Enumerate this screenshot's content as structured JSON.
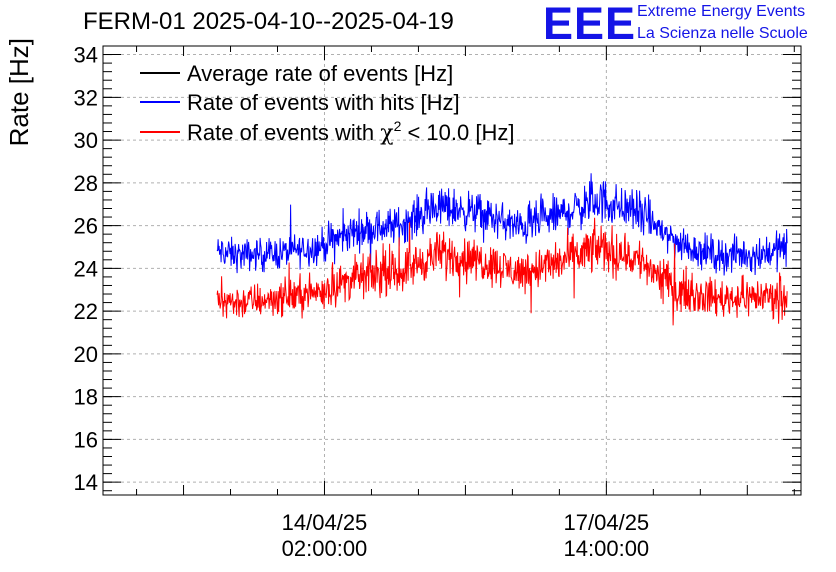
{
  "header": {
    "title": "FERM-01 2025-04-10--2025-04-19",
    "logo_text": "EEE",
    "logo_line1": "Extreme Energy Events",
    "logo_line2": "La Scienza nelle Scuole"
  },
  "colors": {
    "black_series": "#000000",
    "blue_series": "#0000ff",
    "red_series": "#ff0000",
    "logo": "#1414e6"
  },
  "chart_data": {
    "type": "line",
    "title": "FERM-01 2025-04-10--2025-04-19",
    "ylabel": "Rate [Hz]",
    "xlabel": "",
    "ylim": [
      13.4,
      34.4
    ],
    "y_ticks": [
      "14",
      "16",
      "18",
      "20",
      "22",
      "24",
      "26",
      "28",
      "30",
      "32",
      "34"
    ],
    "x_ticks": [
      {
        "date": "14/04/25",
        "time": "02:00:00"
      },
      {
        "date": "17/04/25",
        "time": "14:00:00"
      }
    ],
    "x_range_days": [
      "2025-04-11 08:00",
      "2025-04-20 00:00"
    ],
    "grid": true,
    "legend_position": "top-left",
    "legend": [
      {
        "name": "Average rate of events [Hz]",
        "color": "#000000"
      },
      {
        "name": "Rate of events with hits [Hz]",
        "color": "#0000ff"
      },
      {
        "name_prefix": "Rate of events with ",
        "name_symbol": "χ",
        "name_sup": "2",
        "name_suffix": " < 10.0 [Hz]",
        "color": "#ff0000"
      }
    ],
    "series": [
      {
        "name": "Rate of events with hits [Hz]",
        "color": "#0000ff",
        "x": [
          "2025-04-12 18:00",
          "2025-04-13 00:00",
          "2025-04-13 12:00",
          "2025-04-14 00:00",
          "2025-04-14 12:00",
          "2025-04-15 00:00",
          "2025-04-15 12:00",
          "2025-04-16 00:00",
          "2025-04-16 12:00",
          "2025-04-17 00:00",
          "2025-04-17 12:00",
          "2025-04-18 00:00",
          "2025-04-18 12:00",
          "2025-04-19 00:00",
          "2025-04-19 12:00",
          "2025-04-19 20:00"
        ],
        "mean": [
          24.8,
          24.6,
          24.7,
          25.0,
          25.8,
          26.0,
          26.9,
          26.6,
          25.9,
          26.5,
          27.2,
          26.6,
          25.1,
          24.6,
          24.7,
          25.0
        ],
        "amplitude": [
          1.1,
          1.1,
          1.1,
          1.2,
          1.3,
          1.3,
          1.4,
          1.3,
          1.3,
          1.4,
          1.6,
          1.4,
          1.2,
          1.2,
          1.2,
          1.3
        ]
      },
      {
        "name_prefix": "Rate of events with ",
        "color": "#ff0000",
        "x": [
          "2025-04-12 18:00",
          "2025-04-13 00:00",
          "2025-04-13 12:00",
          "2025-04-14 00:00",
          "2025-04-14 12:00",
          "2025-04-15 00:00",
          "2025-04-15 12:00",
          "2025-04-16 00:00",
          "2025-04-16 12:00",
          "2025-04-17 00:00",
          "2025-04-17 12:00",
          "2025-04-18 00:00",
          "2025-04-18 12:00",
          "2025-04-19 00:00",
          "2025-04-19 12:00",
          "2025-04-19 20:00"
        ],
        "mean": [
          22.6,
          22.4,
          22.6,
          22.9,
          23.6,
          23.8,
          24.7,
          24.4,
          23.8,
          24.3,
          25.0,
          24.4,
          22.9,
          22.6,
          22.7,
          22.8
        ],
        "amplitude": [
          1.2,
          1.2,
          1.2,
          1.3,
          1.4,
          1.4,
          1.5,
          1.4,
          1.4,
          1.5,
          1.7,
          1.5,
          1.3,
          1.3,
          1.3,
          1.4
        ]
      },
      {
        "name": "Average rate of events [Hz]",
        "color": "#000000",
        "x": [],
        "mean": [],
        "amplitude": []
      }
    ]
  }
}
